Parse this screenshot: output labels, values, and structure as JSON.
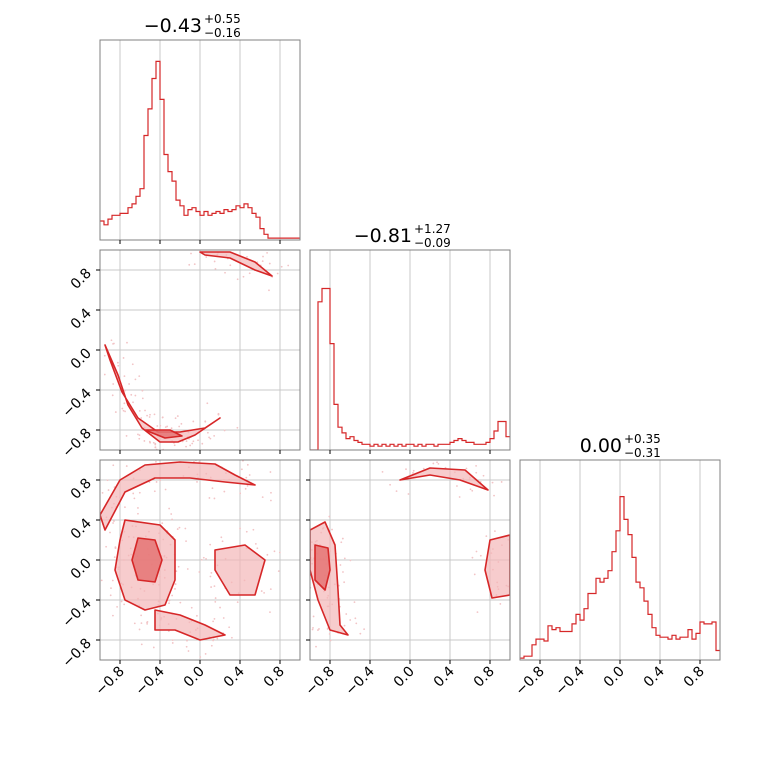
{
  "chart_data": [
    {
      "type": "line",
      "panel": "histogram-param-1",
      "title": {
        "median": "−0.43",
        "plus": "+0.55",
        "minus": "−0.16"
      },
      "x_range": [
        -1.0,
        1.0
      ],
      "grid": true,
      "bins": [
        {
          "x": -1.0,
          "y": 0.1
        },
        {
          "x": -0.96,
          "y": 0.08
        },
        {
          "x": -0.92,
          "y": 0.11
        },
        {
          "x": -0.88,
          "y": 0.13
        },
        {
          "x": -0.84,
          "y": 0.13
        },
        {
          "x": -0.8,
          "y": 0.14
        },
        {
          "x": -0.76,
          "y": 0.14
        },
        {
          "x": -0.72,
          "y": 0.17
        },
        {
          "x": -0.68,
          "y": 0.19
        },
        {
          "x": -0.64,
          "y": 0.23
        },
        {
          "x": -0.6,
          "y": 0.27
        },
        {
          "x": -0.56,
          "y": 0.55
        },
        {
          "x": -0.52,
          "y": 0.69
        },
        {
          "x": -0.48,
          "y": 0.85
        },
        {
          "x": -0.44,
          "y": 0.94
        },
        {
          "x": -0.4,
          "y": 0.74
        },
        {
          "x": -0.36,
          "y": 0.45
        },
        {
          "x": -0.32,
          "y": 0.36
        },
        {
          "x": -0.28,
          "y": 0.31
        },
        {
          "x": -0.24,
          "y": 0.21
        },
        {
          "x": -0.2,
          "y": 0.18
        },
        {
          "x": -0.16,
          "y": 0.13
        },
        {
          "x": -0.12,
          "y": 0.16
        },
        {
          "x": -0.08,
          "y": 0.17
        },
        {
          "x": -0.04,
          "y": 0.15
        },
        {
          "x": 0.0,
          "y": 0.13
        },
        {
          "x": 0.04,
          "y": 0.15
        },
        {
          "x": 0.08,
          "y": 0.13
        },
        {
          "x": 0.12,
          "y": 0.14
        },
        {
          "x": 0.16,
          "y": 0.15
        },
        {
          "x": 0.2,
          "y": 0.14
        },
        {
          "x": 0.24,
          "y": 0.16
        },
        {
          "x": 0.28,
          "y": 0.15
        },
        {
          "x": 0.32,
          "y": 0.16
        },
        {
          "x": 0.36,
          "y": 0.18
        },
        {
          "x": 0.4,
          "y": 0.17
        },
        {
          "x": 0.44,
          "y": 0.19
        },
        {
          "x": 0.48,
          "y": 0.17
        },
        {
          "x": 0.52,
          "y": 0.14
        },
        {
          "x": 0.56,
          "y": 0.12
        },
        {
          "x": 0.6,
          "y": 0.06
        },
        {
          "x": 0.64,
          "y": 0.03
        },
        {
          "x": 0.68,
          "y": 0.01
        },
        {
          "x": 0.72,
          "y": 0.01
        },
        {
          "x": 0.76,
          "y": 0.01
        },
        {
          "x": 0.8,
          "y": 0.01
        },
        {
          "x": 0.84,
          "y": 0.01
        },
        {
          "x": 0.88,
          "y": 0.01
        },
        {
          "x": 0.92,
          "y": 0.01
        },
        {
          "x": 0.96,
          "y": 0.01
        }
      ]
    },
    {
      "type": "line",
      "panel": "histogram-param-2",
      "title": {
        "median": "−0.81",
        "plus": "+1.27",
        "minus": "−0.09"
      },
      "x_range": [
        -1.0,
        1.0
      ],
      "grid": true,
      "bins": [
        {
          "x": -1.0,
          "y": 0.0
        },
        {
          "x": -0.96,
          "y": 0.0
        },
        {
          "x": -0.92,
          "y": 0.78
        },
        {
          "x": -0.88,
          "y": 0.85
        },
        {
          "x": -0.84,
          "y": 0.85
        },
        {
          "x": -0.8,
          "y": 0.56
        },
        {
          "x": -0.76,
          "y": 0.24
        },
        {
          "x": -0.72,
          "y": 0.12
        },
        {
          "x": -0.68,
          "y": 0.09
        },
        {
          "x": -0.64,
          "y": 0.06
        },
        {
          "x": -0.6,
          "y": 0.07
        },
        {
          "x": -0.56,
          "y": 0.05
        },
        {
          "x": -0.52,
          "y": 0.04
        },
        {
          "x": -0.48,
          "y": 0.03
        },
        {
          "x": -0.44,
          "y": 0.03
        },
        {
          "x": -0.4,
          "y": 0.02
        },
        {
          "x": -0.36,
          "y": 0.03
        },
        {
          "x": -0.32,
          "y": 0.02
        },
        {
          "x": -0.28,
          "y": 0.03
        },
        {
          "x": -0.24,
          "y": 0.02
        },
        {
          "x": -0.2,
          "y": 0.03
        },
        {
          "x": -0.16,
          "y": 0.02
        },
        {
          "x": -0.12,
          "y": 0.03
        },
        {
          "x": -0.08,
          "y": 0.02
        },
        {
          "x": -0.04,
          "y": 0.03
        },
        {
          "x": 0.0,
          "y": 0.03
        },
        {
          "x": 0.04,
          "y": 0.02
        },
        {
          "x": 0.08,
          "y": 0.03
        },
        {
          "x": 0.12,
          "y": 0.02
        },
        {
          "x": 0.16,
          "y": 0.03
        },
        {
          "x": 0.2,
          "y": 0.03
        },
        {
          "x": 0.24,
          "y": 0.02
        },
        {
          "x": 0.28,
          "y": 0.03
        },
        {
          "x": 0.32,
          "y": 0.03
        },
        {
          "x": 0.36,
          "y": 0.03
        },
        {
          "x": 0.4,
          "y": 0.04
        },
        {
          "x": 0.44,
          "y": 0.05
        },
        {
          "x": 0.48,
          "y": 0.06
        },
        {
          "x": 0.52,
          "y": 0.05
        },
        {
          "x": 0.56,
          "y": 0.04
        },
        {
          "x": 0.6,
          "y": 0.04
        },
        {
          "x": 0.64,
          "y": 0.03
        },
        {
          "x": 0.68,
          "y": 0.03
        },
        {
          "x": 0.72,
          "y": 0.03
        },
        {
          "x": 0.76,
          "y": 0.04
        },
        {
          "x": 0.8,
          "y": 0.06
        },
        {
          "x": 0.84,
          "y": 0.1
        },
        {
          "x": 0.88,
          "y": 0.15
        },
        {
          "x": 0.92,
          "y": 0.15
        },
        {
          "x": 0.96,
          "y": 0.07
        }
      ]
    },
    {
      "type": "line",
      "panel": "histogram-param-3",
      "title": {
        "median": "0.00",
        "plus": "+0.35",
        "minus": "−0.31"
      },
      "x_range": [
        -1.0,
        1.0
      ],
      "grid": true,
      "bins": [
        {
          "x": -1.0,
          "y": 0.01
        },
        {
          "x": -0.96,
          "y": 0.02
        },
        {
          "x": -0.92,
          "y": 0.02
        },
        {
          "x": -0.88,
          "y": 0.08
        },
        {
          "x": -0.84,
          "y": 0.11
        },
        {
          "x": -0.8,
          "y": 0.11
        },
        {
          "x": -0.76,
          "y": 0.1
        },
        {
          "x": -0.72,
          "y": 0.18
        },
        {
          "x": -0.68,
          "y": 0.16
        },
        {
          "x": -0.64,
          "y": 0.17
        },
        {
          "x": -0.6,
          "y": 0.15
        },
        {
          "x": -0.56,
          "y": 0.15
        },
        {
          "x": -0.52,
          "y": 0.15
        },
        {
          "x": -0.48,
          "y": 0.19
        },
        {
          "x": -0.44,
          "y": 0.24
        },
        {
          "x": -0.4,
          "y": 0.21
        },
        {
          "x": -0.36,
          "y": 0.27
        },
        {
          "x": -0.32,
          "y": 0.35
        },
        {
          "x": -0.28,
          "y": 0.35
        },
        {
          "x": -0.24,
          "y": 0.43
        },
        {
          "x": -0.2,
          "y": 0.41
        },
        {
          "x": -0.16,
          "y": 0.43
        },
        {
          "x": -0.12,
          "y": 0.47
        },
        {
          "x": -0.08,
          "y": 0.57
        },
        {
          "x": -0.04,
          "y": 0.68
        },
        {
          "x": 0.0,
          "y": 0.86
        },
        {
          "x": 0.04,
          "y": 0.74
        },
        {
          "x": 0.08,
          "y": 0.66
        },
        {
          "x": 0.12,
          "y": 0.54
        },
        {
          "x": 0.16,
          "y": 0.41
        },
        {
          "x": 0.2,
          "y": 0.38
        },
        {
          "x": 0.24,
          "y": 0.31
        },
        {
          "x": 0.28,
          "y": 0.24
        },
        {
          "x": 0.32,
          "y": 0.17
        },
        {
          "x": 0.36,
          "y": 0.13
        },
        {
          "x": 0.4,
          "y": 0.12
        },
        {
          "x": 0.44,
          "y": 0.12
        },
        {
          "x": 0.48,
          "y": 0.11
        },
        {
          "x": 0.52,
          "y": 0.13
        },
        {
          "x": 0.56,
          "y": 0.11
        },
        {
          "x": 0.6,
          "y": 0.12
        },
        {
          "x": 0.64,
          "y": 0.12
        },
        {
          "x": 0.68,
          "y": 0.16
        },
        {
          "x": 0.72,
          "y": 0.11
        },
        {
          "x": 0.76,
          "y": 0.14
        },
        {
          "x": 0.8,
          "y": 0.2
        },
        {
          "x": 0.84,
          "y": 0.19
        },
        {
          "x": 0.88,
          "y": 0.19
        },
        {
          "x": 0.92,
          "y": 0.2
        },
        {
          "x": 0.96,
          "y": 0.05
        }
      ]
    },
    {
      "type": "scatter",
      "panel": "joint-param-1-vs-param-2",
      "x_range": [
        -1.0,
        1.0
      ],
      "y_range": [
        -1.0,
        1.0
      ],
      "description_of_shape": "density contours along circle of radius ~0.9",
      "contours": [
        {
          "level": "outer",
          "points": [
            [
              -0.95,
              0.05
            ],
            [
              -0.82,
              -0.25
            ],
            [
              -0.72,
              -0.55
            ],
            [
              -0.58,
              -0.78
            ],
            [
              -0.4,
              -0.92
            ],
            [
              -0.22,
              -0.92
            ],
            [
              -0.05,
              -0.85
            ],
            [
              0.2,
              -0.68
            ],
            [
              0.05,
              -0.78
            ],
            [
              -0.2,
              -0.82
            ],
            [
              -0.42,
              -0.82
            ],
            [
              -0.62,
              -0.68
            ],
            [
              -0.78,
              -0.42
            ],
            [
              -0.9,
              -0.1
            ]
          ]
        },
        {
          "level": "inner",
          "points": [
            [
              -0.55,
              -0.8
            ],
            [
              -0.35,
              -0.88
            ],
            [
              -0.18,
              -0.86
            ],
            [
              -0.3,
              -0.8
            ]
          ]
        },
        {
          "level": "outer",
          "points": [
            [
              0.0,
              0.98
            ],
            [
              0.3,
              0.98
            ],
            [
              0.55,
              0.88
            ],
            [
              0.72,
              0.74
            ],
            [
              0.55,
              0.8
            ],
            [
              0.3,
              0.92
            ],
            [
              0.05,
              0.95
            ]
          ]
        }
      ],
      "ticks_y": [
        "−0.8",
        "−0.4",
        "0.0",
        "0.4",
        "0.8"
      ]
    },
    {
      "type": "scatter",
      "panel": "joint-param-1-vs-param-3",
      "x_range": [
        -1.0,
        1.0
      ],
      "y_range": [
        -1.0,
        1.0
      ],
      "description_of_shape": "ring-shaped density with core near (-0.5, 0.0)",
      "contours": [
        {
          "level": "outer",
          "points": [
            [
              -1.0,
              0.45
            ],
            [
              -0.8,
              0.8
            ],
            [
              -0.55,
              0.95
            ],
            [
              -0.2,
              0.98
            ],
            [
              0.15,
              0.96
            ],
            [
              0.35,
              0.85
            ],
            [
              0.55,
              0.75
            ],
            [
              0.25,
              0.78
            ],
            [
              -0.1,
              0.82
            ],
            [
              -0.45,
              0.82
            ],
            [
              -0.75,
              0.68
            ],
            [
              -0.95,
              0.3
            ]
          ]
        },
        {
          "level": "outer",
          "points": [
            [
              -0.75,
              0.4
            ],
            [
              -0.4,
              0.35
            ],
            [
              -0.25,
              0.2
            ],
            [
              -0.25,
              -0.2
            ],
            [
              -0.35,
              -0.45
            ],
            [
              -0.55,
              -0.5
            ],
            [
              -0.75,
              -0.4
            ],
            [
              -0.85,
              -0.1
            ],
            [
              -0.8,
              0.2
            ]
          ]
        },
        {
          "level": "inner",
          "points": [
            [
              -0.62,
              0.22
            ],
            [
              -0.45,
              0.2
            ],
            [
              -0.38,
              0.0
            ],
            [
              -0.45,
              -0.22
            ],
            [
              -0.62,
              -0.2
            ],
            [
              -0.68,
              0.0
            ]
          ]
        },
        {
          "level": "outer",
          "points": [
            [
              -0.45,
              -0.5
            ],
            [
              -0.2,
              -0.55
            ],
            [
              0.05,
              -0.65
            ],
            [
              0.25,
              -0.75
            ],
            [
              0.0,
              -0.8
            ],
            [
              -0.25,
              -0.7
            ],
            [
              -0.45,
              -0.7
            ]
          ]
        },
        {
          "level": "outer",
          "points": [
            [
              0.15,
              0.1
            ],
            [
              0.45,
              0.15
            ],
            [
              0.65,
              0.0
            ],
            [
              0.55,
              -0.35
            ],
            [
              0.3,
              -0.35
            ],
            [
              0.15,
              -0.1
            ]
          ]
        }
      ],
      "ticks_y": [
        "−0.8",
        "−0.4",
        "0.0",
        "0.4",
        "0.8"
      ],
      "ticks_x": [
        "−0.8",
        "−0.4",
        "0.0",
        "0.4",
        "0.8"
      ]
    },
    {
      "type": "scatter",
      "panel": "joint-param-2-vs-param-3",
      "x_range": [
        -1.0,
        1.0
      ],
      "y_range": [
        -1.0,
        1.0
      ],
      "description_of_shape": "concentration near x=-0.85 plus arc",
      "contours": [
        {
          "level": "outer",
          "points": [
            [
              -1.0,
              0.3
            ],
            [
              -0.85,
              0.38
            ],
            [
              -0.75,
              0.15
            ],
            [
              -0.72,
              -0.3
            ],
            [
              -0.7,
              -0.65
            ],
            [
              -0.62,
              -0.75
            ],
            [
              -0.8,
              -0.7
            ],
            [
              -0.92,
              -0.4
            ],
            [
              -1.0,
              -0.1
            ]
          ]
        },
        {
          "level": "inner",
          "points": [
            [
              -0.95,
              0.15
            ],
            [
              -0.82,
              0.12
            ],
            [
              -0.8,
              -0.1
            ],
            [
              -0.85,
              -0.3
            ],
            [
              -0.95,
              -0.2
            ]
          ]
        },
        {
          "level": "outer",
          "points": [
            [
              0.8,
              0.2
            ],
            [
              1.0,
              0.25
            ],
            [
              1.0,
              -0.35
            ],
            [
              0.82,
              -0.38
            ],
            [
              0.75,
              -0.1
            ]
          ]
        },
        {
          "level": "outer",
          "points": [
            [
              -0.1,
              0.8
            ],
            [
              0.2,
              0.92
            ],
            [
              0.55,
              0.9
            ],
            [
              0.78,
              0.7
            ],
            [
              0.5,
              0.8
            ],
            [
              0.2,
              0.85
            ]
          ]
        }
      ],
      "ticks_x": [
        "−0.8",
        "−0.4",
        "0.0",
        "0.4",
        "0.8"
      ]
    }
  ],
  "axis_ticks": [
    "−0.8",
    "−0.4",
    "0.0",
    "0.4",
    "0.8"
  ],
  "colors": {
    "series": "#d62728",
    "fill_outer": "#f4b7b8",
    "fill_inner": "#e57373",
    "grid": "#c8c8c8",
    "axes": "#808080"
  }
}
